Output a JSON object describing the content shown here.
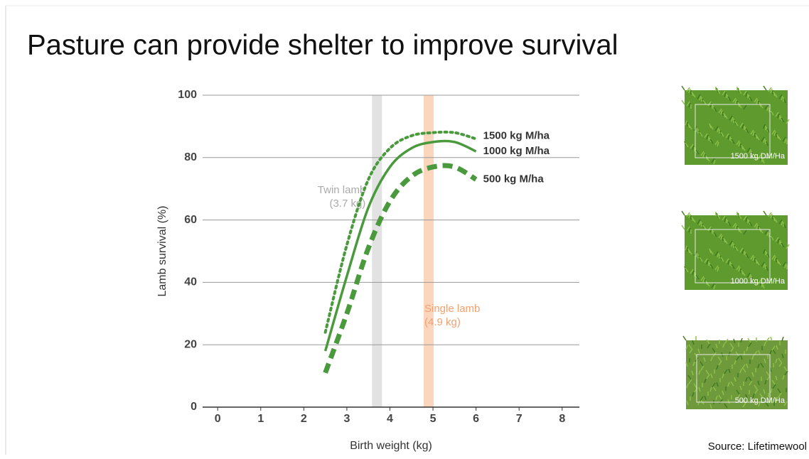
{
  "title": "Pasture can provide shelter to improve survival",
  "source": "Source: Lifetimewool",
  "photos": [
    "1500 kg DM/Ha",
    "1000 kg DM/Ha",
    "500 kg DM/Ha"
  ],
  "chart_data": {
    "type": "line",
    "x_label": "Birth weight (kg)",
    "y_label": "Lamb survival (%)",
    "x": [
      2.5,
      3,
      3.5,
      4,
      4.5,
      5,
      5.5,
      6
    ],
    "series": [
      {
        "name": "1500 kg M/ha",
        "color": "#4a9a3d",
        "style": "dotted",
        "values": [
          24,
          52,
          73,
          83,
          87,
          88,
          88,
          86
        ]
      },
      {
        "name": "1000 kg M/ha",
        "color": "#4a9a3d",
        "style": "solid",
        "values": [
          18,
          42,
          64,
          77,
          83,
          85,
          85,
          82
        ]
      },
      {
        "name": "500 kg M/ha",
        "color": "#4a9a3d",
        "style": "dashed",
        "values": [
          11,
          30,
          51,
          66,
          74,
          77,
          77,
          73
        ]
      }
    ],
    "bands": [
      {
        "x": 3.7,
        "color": "#e2e2e2",
        "label_color": "#aaaaaa",
        "label": [
          "Twin lamb",
          "(3.7 kg)"
        ]
      },
      {
        "x": 4.9,
        "color": "#fbd6bd",
        "label_color": "#f4a070",
        "label": [
          "Single lamb",
          "(4.9 kg)"
        ]
      }
    ],
    "xlim": [
      -0.35,
      8.4
    ],
    "xticks": [
      0,
      1,
      2,
      3,
      4,
      5,
      6,
      7,
      8
    ],
    "ylim": [
      0,
      100
    ],
    "yticks": [
      0,
      20,
      40,
      60,
      80,
      100
    ],
    "grid": true
  }
}
